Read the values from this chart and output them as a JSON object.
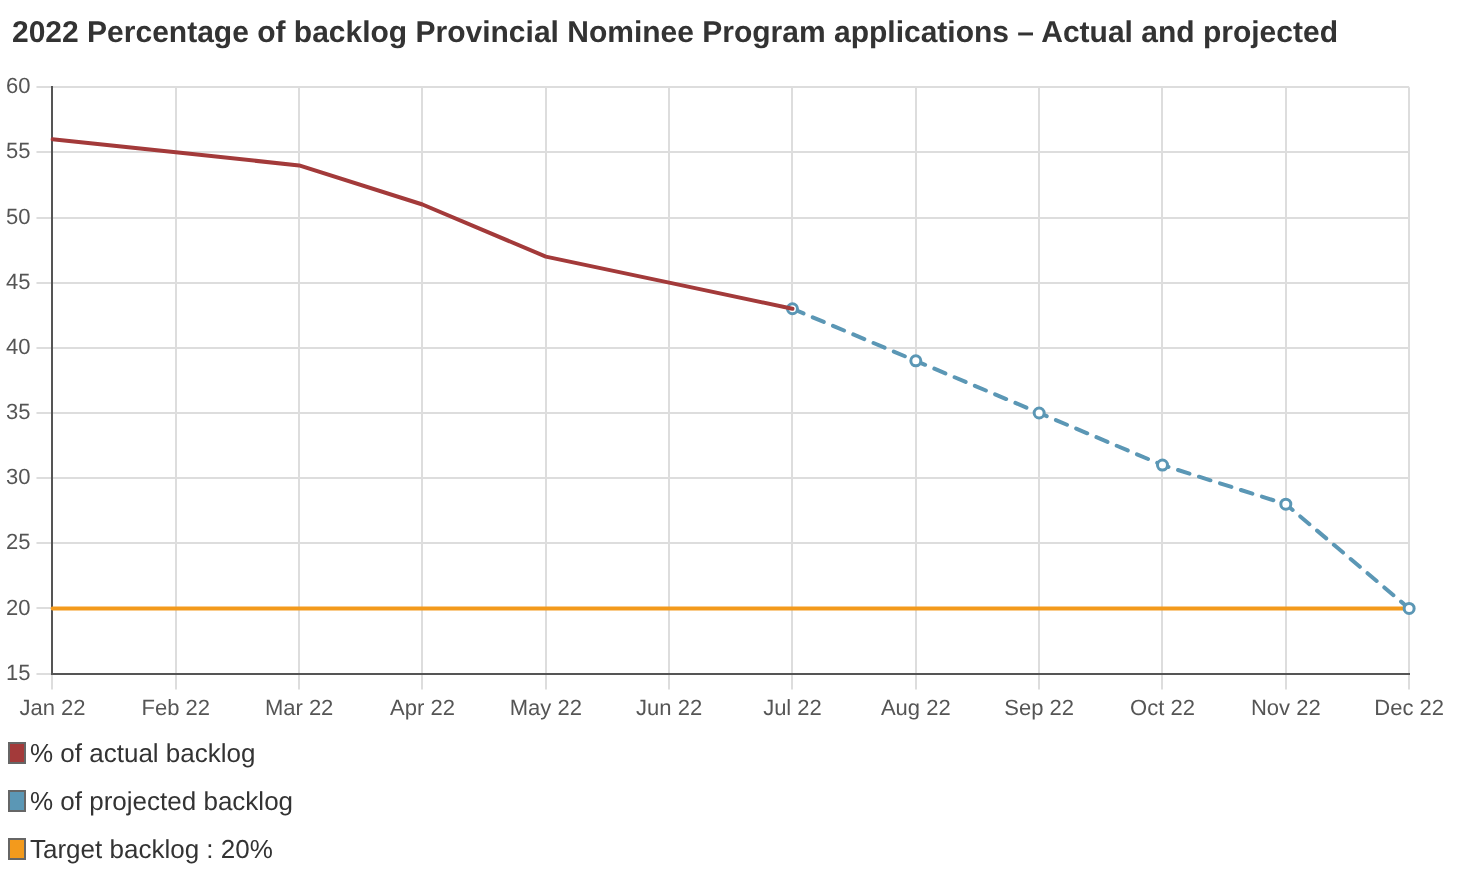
{
  "chart_data": {
    "type": "line",
    "title": "2022 Percentage of backlog Provincial Nominee Program applications – Actual and projected",
    "categories": [
      "Jan 22",
      "Feb 22",
      "Mar 22",
      "Apr 22",
      "May 22",
      "Jun 22",
      "Jul 22",
      "Aug 22",
      "Sep 22",
      "Oct 22",
      "Nov 22",
      "Dec 22"
    ],
    "series": [
      {
        "name": "% of actual backlog",
        "color": "#a33a3a",
        "values": [
          56,
          55,
          54,
          51,
          47,
          45,
          43,
          null,
          null,
          null,
          null,
          null
        ],
        "marker": "none",
        "line_style": "solid"
      },
      {
        "name": "% of projected backlog",
        "color": "#5b97b5",
        "values": [
          null,
          null,
          null,
          null,
          null,
          null,
          43,
          39,
          35,
          31,
          28,
          20
        ],
        "marker": "circle",
        "line_style": "dashed"
      },
      {
        "name": "Target backlog : 20%",
        "color": "#f39a1c",
        "values": [
          20,
          20,
          20,
          20,
          20,
          20,
          20,
          20,
          20,
          20,
          20,
          20
        ],
        "marker": "none",
        "line_style": "solid"
      }
    ],
    "ylim": [
      15,
      60
    ],
    "yticks": [
      15,
      20,
      25,
      30,
      35,
      40,
      45,
      50,
      55,
      60
    ],
    "grid": true,
    "legend": "bottom left"
  }
}
